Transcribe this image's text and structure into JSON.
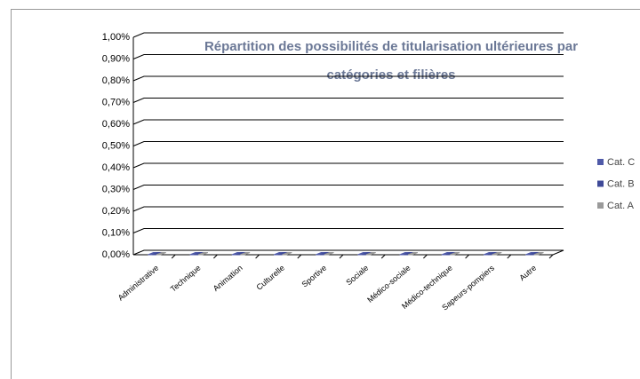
{
  "chart_data": {
    "type": "bar3d",
    "title": [
      "Répartition des possibilités de titularisation ultérieures par",
      "catégories et filières"
    ],
    "categories": [
      "Administrative",
      "Technique",
      "Animation",
      "Culturelle",
      "Sportive",
      "Sociale",
      "Médico-sociale",
      "Médico-technique",
      "Sapeurs-pompiers",
      "Autre"
    ],
    "series": [
      {
        "name": "Cat. C",
        "color": "#4f5aa8",
        "values": [
          0,
          0,
          0,
          0,
          0,
          0,
          0,
          0,
          0,
          0
        ]
      },
      {
        "name": "Cat. B",
        "color": "#3f4a98",
        "values": [
          0,
          0,
          0,
          0,
          0,
          0,
          0,
          0,
          0,
          0
        ]
      },
      {
        "name": "Cat. A",
        "color": "#9a9a9a",
        "values": [
          0,
          0,
          0,
          0,
          0,
          0,
          0,
          0,
          0,
          0
        ]
      }
    ],
    "ylim": [
      0,
      1
    ],
    "yticks": [
      {
        "value": 0,
        "label": "0,00%"
      },
      {
        "value": 0.1,
        "label": "0,10%"
      },
      {
        "value": 0.2,
        "label": "0,20%"
      },
      {
        "value": 0.3,
        "label": "0,30%"
      },
      {
        "value": 0.4,
        "label": "0,40%"
      },
      {
        "value": 0.5,
        "label": "0,50%"
      },
      {
        "value": 0.6,
        "label": "0,60%"
      },
      {
        "value": 0.7,
        "label": "0,70%"
      },
      {
        "value": 0.8,
        "label": "0,80%"
      },
      {
        "value": 0.9,
        "label": "0,90%"
      },
      {
        "value": 1,
        "label": "1,00%"
      }
    ],
    "grid": true
  }
}
